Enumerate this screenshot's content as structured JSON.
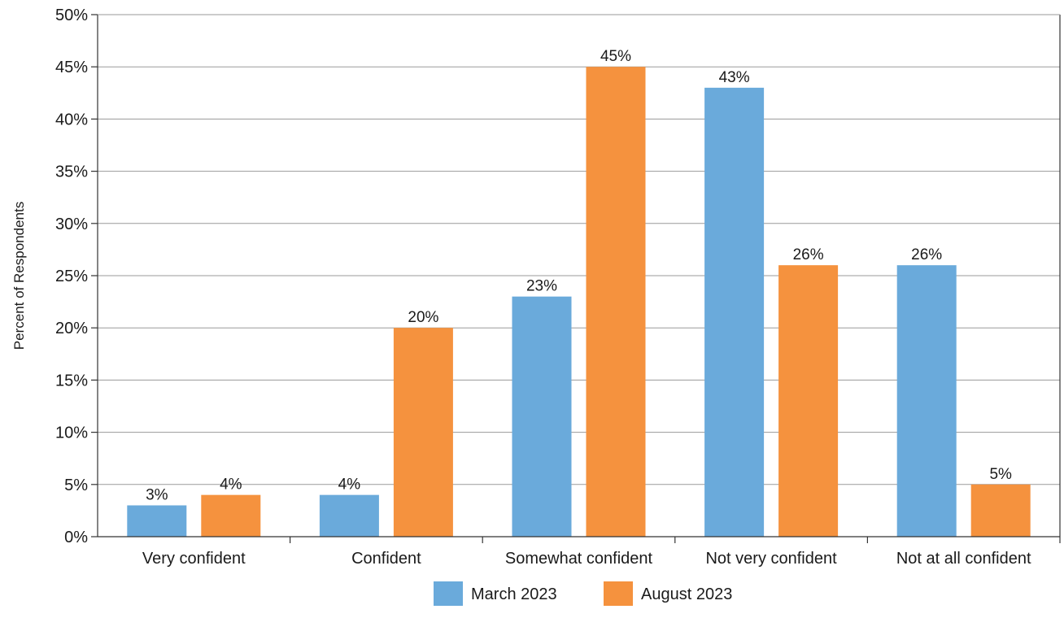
{
  "chart_data": {
    "type": "bar",
    "categories": [
      "Very confident",
      "Confident",
      "Somewhat confident",
      "Not very confident",
      "Not at all confident"
    ],
    "series": [
      {
        "name": "March 2023",
        "values": [
          3,
          4,
          23,
          43,
          26
        ],
        "labels": [
          "3%",
          "4%",
          "23%",
          "43%",
          "26%"
        ],
        "color": "#6aaadb"
      },
      {
        "name": "August 2023",
        "values": [
          4,
          20,
          45,
          26,
          5
        ],
        "labels": [
          "4%",
          "20%",
          "45%",
          "26%",
          "5%"
        ],
        "color": "#f5923e"
      }
    ],
    "title": "",
    "xlabel": "",
    "ylabel": "Percent of Respondents",
    "ylim": [
      0,
      50
    ],
    "yticks": [
      0,
      5,
      10,
      15,
      20,
      25,
      30,
      35,
      40,
      45,
      50
    ],
    "ytick_labels": [
      "0%",
      "5%",
      "10%",
      "15%",
      "20%",
      "25%",
      "30%",
      "35%",
      "40%",
      "45%",
      "50%"
    ],
    "grid": true,
    "legend_position": "bottom"
  }
}
